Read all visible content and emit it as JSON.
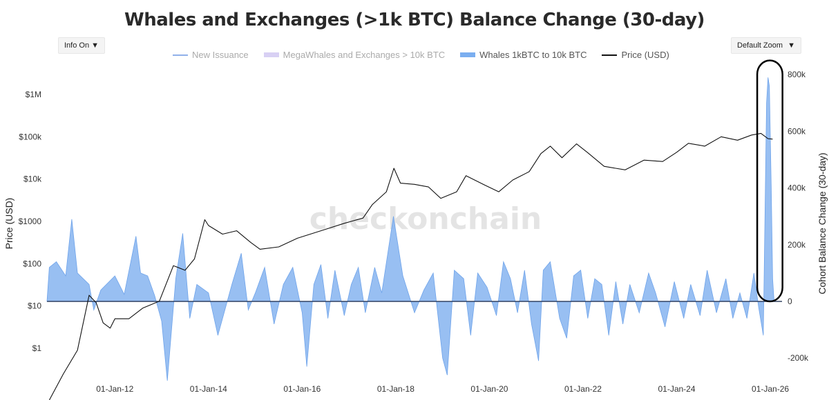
{
  "chart_data": {
    "type": "line",
    "title": "Whales and Exchanges (>1k BTC) Balance Change (30-day)",
    "watermark": "checkonchain",
    "controls": {
      "info": "Info On",
      "zoom": "Default Zoom"
    },
    "legend": [
      {
        "name": "New Issuance",
        "color": "#8fb0ea",
        "style": "line",
        "dim": true
      },
      {
        "name": "MegaWhales and Exchanges > 10k BTC",
        "color": "#d8d0f4",
        "style": "band",
        "dim": true
      },
      {
        "name": "Whales 1kBTC to 10k BTC",
        "color": "#7aaef0",
        "style": "band",
        "dim": false
      },
      {
        "name": "Price (USD)",
        "color": "#111111",
        "style": "line",
        "dim": false
      }
    ],
    "x_axis": {
      "range": [
        2010.55,
        2026.25
      ],
      "ticks": [
        {
          "label": "01-Jan-12",
          "value": 2012
        },
        {
          "label": "01-Jan-14",
          "value": 2014
        },
        {
          "label": "01-Jan-16",
          "value": 2016
        },
        {
          "label": "01-Jan-18",
          "value": 2018
        },
        {
          "label": "01-Jan-20",
          "value": 2020
        },
        {
          "label": "01-Jan-22",
          "value": 2022
        },
        {
          "label": "01-Jan-24",
          "value": 2024
        },
        {
          "label": "01-Jan-26",
          "value": 2026
        }
      ]
    },
    "y_left": {
      "label": "Price (USD)",
      "scale": "log",
      "range": [
        0.2,
        4000000
      ],
      "ticks": [
        {
          "label": "$1",
          "value": 1
        },
        {
          "label": "$10",
          "value": 10
        },
        {
          "label": "$100",
          "value": 100
        },
        {
          "label": "$1000",
          "value": 1000
        },
        {
          "label": "$10k",
          "value": 10000
        },
        {
          "label": "$100k",
          "value": 100000
        },
        {
          "label": "$1M",
          "value": 1000000
        }
      ]
    },
    "y_right": {
      "label": "Cohort Balance Change (30-day)",
      "range": [
        -270000,
        820000
      ],
      "ticks": [
        {
          "label": "-200k",
          "value": -200000
        },
        {
          "label": "0",
          "value": 0
        },
        {
          "label": "200k",
          "value": 200000
        },
        {
          "label": "400k",
          "value": 400000
        },
        {
          "label": "600k",
          "value": 600000
        },
        {
          "label": "800k",
          "value": 800000
        }
      ]
    },
    "series": [
      {
        "name": "Price (USD)",
        "axis": "left",
        "points": [
          [
            2010.6,
            0.06
          ],
          [
            2010.9,
            0.25
          ],
          [
            2011.2,
            0.9
          ],
          [
            2011.45,
            18
          ],
          [
            2011.6,
            12
          ],
          [
            2011.75,
            4
          ],
          [
            2011.9,
            3
          ],
          [
            2012.0,
            5
          ],
          [
            2012.3,
            5
          ],
          [
            2012.6,
            9
          ],
          [
            2012.95,
            13
          ],
          [
            2013.25,
            90
          ],
          [
            2013.5,
            70
          ],
          [
            2013.7,
            130
          ],
          [
            2013.92,
            1100
          ],
          [
            2014.0,
            800
          ],
          [
            2014.3,
            500
          ],
          [
            2014.6,
            600
          ],
          [
            2014.9,
            320
          ],
          [
            2015.1,
            220
          ],
          [
            2015.5,
            250
          ],
          [
            2015.9,
            400
          ],
          [
            2016.5,
            650
          ],
          [
            2016.9,
            900
          ],
          [
            2017.3,
            1200
          ],
          [
            2017.5,
            2500
          ],
          [
            2017.8,
            5000
          ],
          [
            2017.96,
            18000
          ],
          [
            2018.1,
            8000
          ],
          [
            2018.4,
            7500
          ],
          [
            2018.7,
            6500
          ],
          [
            2018.96,
            3500
          ],
          [
            2019.3,
            5000
          ],
          [
            2019.5,
            12000
          ],
          [
            2019.9,
            7200
          ],
          [
            2020.2,
            5000
          ],
          [
            2020.5,
            9500
          ],
          [
            2020.85,
            15000
          ],
          [
            2021.1,
            40000
          ],
          [
            2021.3,
            60000
          ],
          [
            2021.55,
            32000
          ],
          [
            2021.86,
            68000
          ],
          [
            2022.1,
            42000
          ],
          [
            2022.45,
            20000
          ],
          [
            2022.9,
            16500
          ],
          [
            2023.3,
            28000
          ],
          [
            2023.7,
            26000
          ],
          [
            2024.0,
            43000
          ],
          [
            2024.25,
            70000
          ],
          [
            2024.6,
            60000
          ],
          [
            2024.95,
            100000
          ],
          [
            2025.3,
            83000
          ],
          [
            2025.6,
            110000
          ],
          [
            2025.8,
            120000
          ],
          [
            2025.95,
            90000
          ],
          [
            2026.05,
            88000
          ]
        ]
      },
      {
        "name": "Whales 1kBTC to 10k BTC",
        "axis": "right",
        "points": [
          [
            2010.55,
            0
          ],
          [
            2010.6,
            120000
          ],
          [
            2010.75,
            140000
          ],
          [
            2010.95,
            90000
          ],
          [
            2011.08,
            290000
          ],
          [
            2011.2,
            100000
          ],
          [
            2011.45,
            60000
          ],
          [
            2011.55,
            -30000
          ],
          [
            2011.7,
            40000
          ],
          [
            2012.0,
            90000
          ],
          [
            2012.2,
            25000
          ],
          [
            2012.45,
            230000
          ],
          [
            2012.55,
            100000
          ],
          [
            2012.7,
            90000
          ],
          [
            2012.85,
            20000
          ],
          [
            2013.0,
            -70000
          ],
          [
            2013.12,
            -280000
          ],
          [
            2013.3,
            80000
          ],
          [
            2013.45,
            240000
          ],
          [
            2013.6,
            -60000
          ],
          [
            2013.75,
            60000
          ],
          [
            2014.0,
            30000
          ],
          [
            2014.2,
            -120000
          ],
          [
            2014.5,
            60000
          ],
          [
            2014.7,
            170000
          ],
          [
            2014.85,
            -30000
          ],
          [
            2015.0,
            30000
          ],
          [
            2015.2,
            120000
          ],
          [
            2015.4,
            -80000
          ],
          [
            2015.6,
            60000
          ],
          [
            2015.8,
            120000
          ],
          [
            2016.0,
            -40000
          ],
          [
            2016.1,
            -230000
          ],
          [
            2016.25,
            60000
          ],
          [
            2016.4,
            130000
          ],
          [
            2016.55,
            -60000
          ],
          [
            2016.7,
            110000
          ],
          [
            2016.9,
            -50000
          ],
          [
            2017.05,
            60000
          ],
          [
            2017.2,
            120000
          ],
          [
            2017.35,
            -40000
          ],
          [
            2017.55,
            120000
          ],
          [
            2017.7,
            30000
          ],
          [
            2017.95,
            300000
          ],
          [
            2018.15,
            90000
          ],
          [
            2018.4,
            -40000
          ],
          [
            2018.6,
            40000
          ],
          [
            2018.8,
            100000
          ],
          [
            2019.0,
            -200000
          ],
          [
            2019.1,
            -260000
          ],
          [
            2019.25,
            110000
          ],
          [
            2019.45,
            80000
          ],
          [
            2019.6,
            -120000
          ],
          [
            2019.75,
            100000
          ],
          [
            2019.95,
            50000
          ],
          [
            2020.15,
            -50000
          ],
          [
            2020.3,
            140000
          ],
          [
            2020.45,
            80000
          ],
          [
            2020.6,
            -40000
          ],
          [
            2020.75,
            110000
          ],
          [
            2020.9,
            -80000
          ],
          [
            2021.05,
            -210000
          ],
          [
            2021.15,
            110000
          ],
          [
            2021.3,
            140000
          ],
          [
            2021.5,
            -60000
          ],
          [
            2021.65,
            -130000
          ],
          [
            2021.8,
            90000
          ],
          [
            2021.95,
            110000
          ],
          [
            2022.1,
            -60000
          ],
          [
            2022.25,
            80000
          ],
          [
            2022.4,
            60000
          ],
          [
            2022.55,
            -120000
          ],
          [
            2022.7,
            70000
          ],
          [
            2022.85,
            -80000
          ],
          [
            2023.0,
            60000
          ],
          [
            2023.2,
            -40000
          ],
          [
            2023.4,
            100000
          ],
          [
            2023.55,
            30000
          ],
          [
            2023.75,
            -90000
          ],
          [
            2023.95,
            70000
          ],
          [
            2024.15,
            -60000
          ],
          [
            2024.3,
            60000
          ],
          [
            2024.5,
            -50000
          ],
          [
            2024.65,
            110000
          ],
          [
            2024.85,
            -40000
          ],
          [
            2025.05,
            80000
          ],
          [
            2025.2,
            -60000
          ],
          [
            2025.35,
            30000
          ],
          [
            2025.5,
            -60000
          ],
          [
            2025.65,
            100000
          ],
          [
            2025.75,
            -20000
          ],
          [
            2025.85,
            -120000
          ],
          [
            2025.92,
            700000
          ],
          [
            2025.95,
            790000
          ],
          [
            2025.98,
            760000
          ],
          [
            2026.02,
            400000
          ],
          [
            2026.05,
            80000
          ],
          [
            2026.08,
            0
          ]
        ]
      }
    ],
    "highlight": {
      "shape": "rounded-rectangle",
      "x_range": [
        2025.72,
        2026.26
      ],
      "y_range": [
        0,
        850000
      ],
      "note": "circles recent whale balance spike"
    }
  }
}
